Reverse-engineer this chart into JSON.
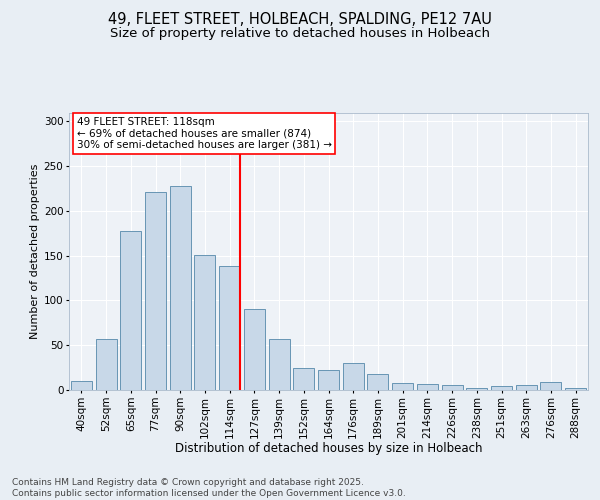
{
  "title_line1": "49, FLEET STREET, HOLBEACH, SPALDING, PE12 7AU",
  "title_line2": "Size of property relative to detached houses in Holbeach",
  "xlabel": "Distribution of detached houses by size in Holbeach",
  "ylabel": "Number of detached properties",
  "categories": [
    "40sqm",
    "52sqm",
    "65sqm",
    "77sqm",
    "90sqm",
    "102sqm",
    "114sqm",
    "127sqm",
    "139sqm",
    "152sqm",
    "164sqm",
    "176sqm",
    "189sqm",
    "201sqm",
    "214sqm",
    "226sqm",
    "238sqm",
    "251sqm",
    "263sqm",
    "276sqm",
    "288sqm"
  ],
  "values": [
    10,
    57,
    178,
    221,
    228,
    151,
    139,
    90,
    57,
    25,
    22,
    30,
    18,
    8,
    7,
    6,
    2,
    4,
    6,
    9,
    2
  ],
  "bar_color": "#c8d8e8",
  "bar_edge_color": "#5588aa",
  "red_line_index": 6,
  "annotation_text": "49 FLEET STREET: 118sqm\n← 69% of detached houses are smaller (874)\n30% of semi-detached houses are larger (381) →",
  "annotation_box_color": "white",
  "annotation_box_edge": "red",
  "red_line_color": "red",
  "ylim": [
    0,
    310
  ],
  "yticks": [
    0,
    50,
    100,
    150,
    200,
    250,
    300
  ],
  "bg_color": "#e8eef4",
  "plot_bg_color": "#eef2f7",
  "footer_text": "Contains HM Land Registry data © Crown copyright and database right 2025.\nContains public sector information licensed under the Open Government Licence v3.0.",
  "title_fontsize": 10.5,
  "subtitle_fontsize": 9.5,
  "xlabel_fontsize": 8.5,
  "ylabel_fontsize": 8,
  "tick_fontsize": 7.5,
  "footer_fontsize": 6.5,
  "ann_fontsize": 7.5
}
